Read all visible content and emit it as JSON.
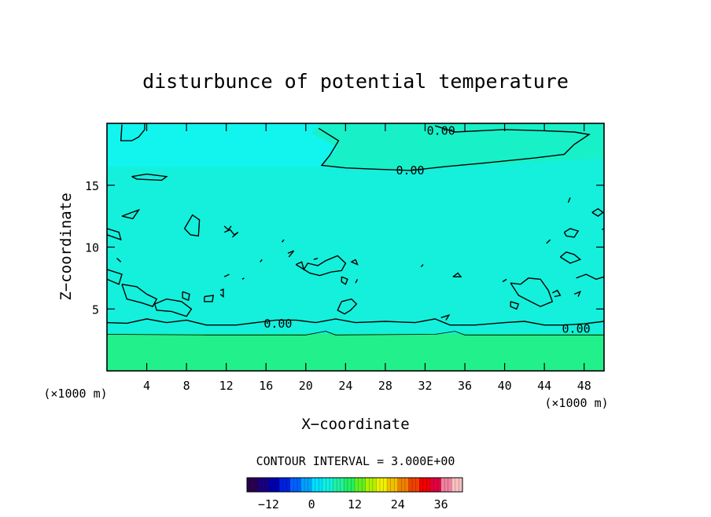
{
  "chart_data": {
    "type": "heatmap",
    "title": "disturbunce of potential temperature",
    "xlabel": "X−coordinate",
    "ylabel": "Z−coordinate",
    "x_unit_left": "(×1000 m)",
    "x_unit_right": "(×1000 m)",
    "xlim": [
      0,
      50
    ],
    "ylim": [
      0,
      20
    ],
    "xticks": [
      4,
      8,
      12,
      16,
      20,
      24,
      28,
      32,
      36,
      40,
      44,
      48
    ],
    "yticks": [
      5,
      10,
      15
    ],
    "grid": false,
    "fields": [
      {
        "region": "z below ~3",
        "value": 1.0,
        "color": "#22f08a"
      },
      {
        "region": "z 3 to ~17",
        "value": -0.8,
        "color": "#14f0dc"
      },
      {
        "region": "upper left z>17",
        "value": -1.3,
        "color": "#12f6f2"
      },
      {
        "region": "upper right z>17",
        "value": 0.2,
        "color": "#18f0c8"
      }
    ],
    "contour_labels": [
      {
        "text": "0.00",
        "x": 33.6,
        "z": 19.4
      },
      {
        "text": "0.00",
        "x": 30.5,
        "z": 16.2
      },
      {
        "text": "0.00",
        "x": 17.2,
        "z": 3.8
      },
      {
        "text": "0.00",
        "x": 47.2,
        "z": 3.4
      }
    ],
    "contour_interval": "CONTOUR INTERVAL = 3.000E+00",
    "colorbar": {
      "range": [
        -18,
        42
      ],
      "ticks": [
        "−12",
        "0",
        "12",
        "24",
        "36"
      ],
      "tick_values": [
        -12,
        0,
        12,
        24,
        36
      ],
      "colors": [
        "#2a0050",
        "#1a0080",
        "#0000b0",
        "#0020e0",
        "#0060ff",
        "#00a0ff",
        "#00e0ff",
        "#10f0e0",
        "#20f0a0",
        "#20f060",
        "#60f020",
        "#b0f000",
        "#f0f000",
        "#f0c000",
        "#f08000",
        "#f04000",
        "#f00000",
        "#e00040",
        "#f080a0",
        "#f8c0c0"
      ]
    }
  }
}
